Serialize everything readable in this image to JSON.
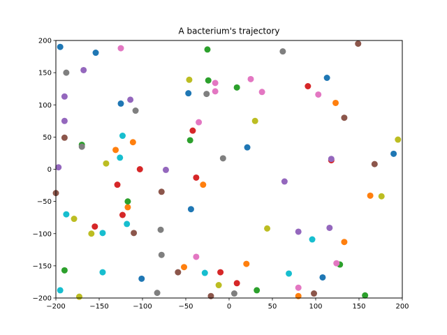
{
  "chart_data": {
    "type": "scatter",
    "title": "A bacterium's trajectory",
    "xlabel": "",
    "ylabel": "",
    "xlim": [
      -200,
      200
    ],
    "ylim": [
      -200,
      200
    ],
    "xticks": [
      -200,
      -150,
      -100,
      -50,
      0,
      50,
      100,
      150,
      200
    ],
    "yticks": [
      -200,
      -150,
      -100,
      -50,
      0,
      50,
      100,
      150,
      200
    ],
    "grid": false,
    "legend": "none",
    "palette": [
      "#1f77b4",
      "#ff7f0e",
      "#2ca02c",
      "#d62728",
      "#9467bd",
      "#8c564b",
      "#e377c2",
      "#7f7f7f",
      "#bcbd22",
      "#17becf"
    ],
    "points": [
      {
        "x": -195,
        "y": 190,
        "color": "#1f77b4"
      },
      {
        "x": -154,
        "y": 181,
        "color": "#1f77b4"
      },
      {
        "x": -125,
        "y": 102,
        "color": "#1f77b4"
      },
      {
        "x": -47,
        "y": 118,
        "color": "#1f77b4"
      },
      {
        "x": 113,
        "y": 142,
        "color": "#1f77b4"
      },
      {
        "x": 21,
        "y": 34,
        "color": "#1f77b4"
      },
      {
        "x": 190,
        "y": 24,
        "color": "#1f77b4"
      },
      {
        "x": -44,
        "y": -62,
        "color": "#1f77b4"
      },
      {
        "x": -101,
        "y": -170,
        "color": "#1f77b4"
      },
      {
        "x": 108,
        "y": -168,
        "color": "#1f77b4"
      },
      {
        "x": -131,
        "y": 30,
        "color": "#ff7f0e"
      },
      {
        "x": -111,
        "y": 42,
        "color": "#ff7f0e"
      },
      {
        "x": -117,
        "y": -59,
        "color": "#ff7f0e"
      },
      {
        "x": -30,
        "y": -24,
        "color": "#ff7f0e"
      },
      {
        "x": -52,
        "y": -152,
        "color": "#ff7f0e"
      },
      {
        "x": 20,
        "y": -147,
        "color": "#ff7f0e"
      },
      {
        "x": 80,
        "y": -197,
        "color": "#ff7f0e"
      },
      {
        "x": 123,
        "y": 103,
        "color": "#ff7f0e"
      },
      {
        "x": 133,
        "y": -113,
        "color": "#ff7f0e"
      },
      {
        "x": 163,
        "y": -41,
        "color": "#ff7f0e"
      },
      {
        "x": -170,
        "y": 38,
        "color": "#2ca02c"
      },
      {
        "x": -117,
        "y": -50,
        "color": "#2ca02c"
      },
      {
        "x": -45,
        "y": 45,
        "color": "#2ca02c"
      },
      {
        "x": -25,
        "y": 186,
        "color": "#2ca02c"
      },
      {
        "x": -24,
        "y": 138,
        "color": "#2ca02c"
      },
      {
        "x": 9,
        "y": 127,
        "color": "#2ca02c"
      },
      {
        "x": 32,
        "y": -188,
        "color": "#2ca02c"
      },
      {
        "x": 128,
        "y": -148,
        "color": "#2ca02c"
      },
      {
        "x": 157,
        "y": -196,
        "color": "#2ca02c"
      },
      {
        "x": -190,
        "y": -157,
        "color": "#2ca02c"
      },
      {
        "x": -42,
        "y": 60,
        "color": "#d62728"
      },
      {
        "x": -103,
        "y": 0,
        "color": "#d62728"
      },
      {
        "x": -129,
        "y": -24,
        "color": "#d62728"
      },
      {
        "x": -123,
        "y": -71,
        "color": "#d62728"
      },
      {
        "x": -155,
        "y": -89,
        "color": "#d62728"
      },
      {
        "x": -38,
        "y": -13,
        "color": "#d62728"
      },
      {
        "x": -10,
        "y": -160,
        "color": "#d62728"
      },
      {
        "x": 9,
        "y": -177,
        "color": "#d62728"
      },
      {
        "x": 91,
        "y": 129,
        "color": "#d62728"
      },
      {
        "x": 118,
        "y": 14,
        "color": "#d62728"
      },
      {
        "x": -168,
        "y": 154,
        "color": "#9467bd"
      },
      {
        "x": -190,
        "y": 113,
        "color": "#9467bd"
      },
      {
        "x": -190,
        "y": 75,
        "color": "#9467bd"
      },
      {
        "x": -197,
        "y": 3,
        "color": "#9467bd"
      },
      {
        "x": -114,
        "y": 108,
        "color": "#9467bd"
      },
      {
        "x": -73,
        "y": -1,
        "color": "#9467bd"
      },
      {
        "x": 64,
        "y": -19,
        "color": "#9467bd"
      },
      {
        "x": 80,
        "y": -97,
        "color": "#9467bd"
      },
      {
        "x": 116,
        "y": -91,
        "color": "#9467bd"
      },
      {
        "x": 118,
        "y": 16,
        "color": "#9467bd"
      },
      {
        "x": -190,
        "y": 49,
        "color": "#8c564b"
      },
      {
        "x": -200,
        "y": -37,
        "color": "#8c564b"
      },
      {
        "x": -110,
        "y": -99,
        "color": "#8c564b"
      },
      {
        "x": -78,
        "y": -35,
        "color": "#8c564b"
      },
      {
        "x": -59,
        "y": -160,
        "color": "#8c564b"
      },
      {
        "x": -21,
        "y": -197,
        "color": "#8c564b"
      },
      {
        "x": 98,
        "y": -193,
        "color": "#8c564b"
      },
      {
        "x": 133,
        "y": 80,
        "color": "#8c564b"
      },
      {
        "x": 149,
        "y": 195,
        "color": "#8c564b"
      },
      {
        "x": 168,
        "y": 8,
        "color": "#8c564b"
      },
      {
        "x": -125,
        "y": 188,
        "color": "#e377c2"
      },
      {
        "x": -35,
        "y": 73,
        "color": "#e377c2"
      },
      {
        "x": -16,
        "y": 134,
        "color": "#e377c2"
      },
      {
        "x": -16,
        "y": 121,
        "color": "#e377c2"
      },
      {
        "x": 25,
        "y": 140,
        "color": "#e377c2"
      },
      {
        "x": 38,
        "y": 120,
        "color": "#e377c2"
      },
      {
        "x": 103,
        "y": 116,
        "color": "#e377c2"
      },
      {
        "x": -38,
        "y": -136,
        "color": "#e377c2"
      },
      {
        "x": 80,
        "y": -184,
        "color": "#e377c2"
      },
      {
        "x": 124,
        "y": -146,
        "color": "#e377c2"
      },
      {
        "x": -188,
        "y": 150,
        "color": "#7f7f7f"
      },
      {
        "x": -108,
        "y": 91,
        "color": "#7f7f7f"
      },
      {
        "x": -170,
        "y": 35,
        "color": "#7f7f7f"
      },
      {
        "x": -26,
        "y": 117,
        "color": "#7f7f7f"
      },
      {
        "x": -7,
        "y": 17,
        "color": "#7f7f7f"
      },
      {
        "x": 62,
        "y": 183,
        "color": "#7f7f7f"
      },
      {
        "x": -79,
        "y": -94,
        "color": "#7f7f7f"
      },
      {
        "x": -78,
        "y": -133,
        "color": "#7f7f7f"
      },
      {
        "x": -83,
        "y": -192,
        "color": "#7f7f7f"
      },
      {
        "x": 6,
        "y": -193,
        "color": "#7f7f7f"
      },
      {
        "x": -46,
        "y": 139,
        "color": "#bcbd22"
      },
      {
        "x": -142,
        "y": 9,
        "color": "#bcbd22"
      },
      {
        "x": 30,
        "y": 75,
        "color": "#bcbd22"
      },
      {
        "x": 195,
        "y": 46,
        "color": "#bcbd22"
      },
      {
        "x": 176,
        "y": -42,
        "color": "#bcbd22"
      },
      {
        "x": 44,
        "y": -92,
        "color": "#bcbd22"
      },
      {
        "x": -179,
        "y": -77,
        "color": "#bcbd22"
      },
      {
        "x": -159,
        "y": -100,
        "color": "#bcbd22"
      },
      {
        "x": -173,
        "y": -198,
        "color": "#bcbd22"
      },
      {
        "x": -12,
        "y": -180,
        "color": "#bcbd22"
      },
      {
        "x": -123,
        "y": 52,
        "color": "#17becf"
      },
      {
        "x": -126,
        "y": 18,
        "color": "#17becf"
      },
      {
        "x": -188,
        "y": -70,
        "color": "#17becf"
      },
      {
        "x": -118,
        "y": -85,
        "color": "#17becf"
      },
      {
        "x": -146,
        "y": -99,
        "color": "#17becf"
      },
      {
        "x": -146,
        "y": -160,
        "color": "#17becf"
      },
      {
        "x": -28,
        "y": -161,
        "color": "#17becf"
      },
      {
        "x": -195,
        "y": -188,
        "color": "#17becf"
      },
      {
        "x": 69,
        "y": -162,
        "color": "#17becf"
      },
      {
        "x": 96,
        "y": -109,
        "color": "#17becf"
      }
    ]
  }
}
